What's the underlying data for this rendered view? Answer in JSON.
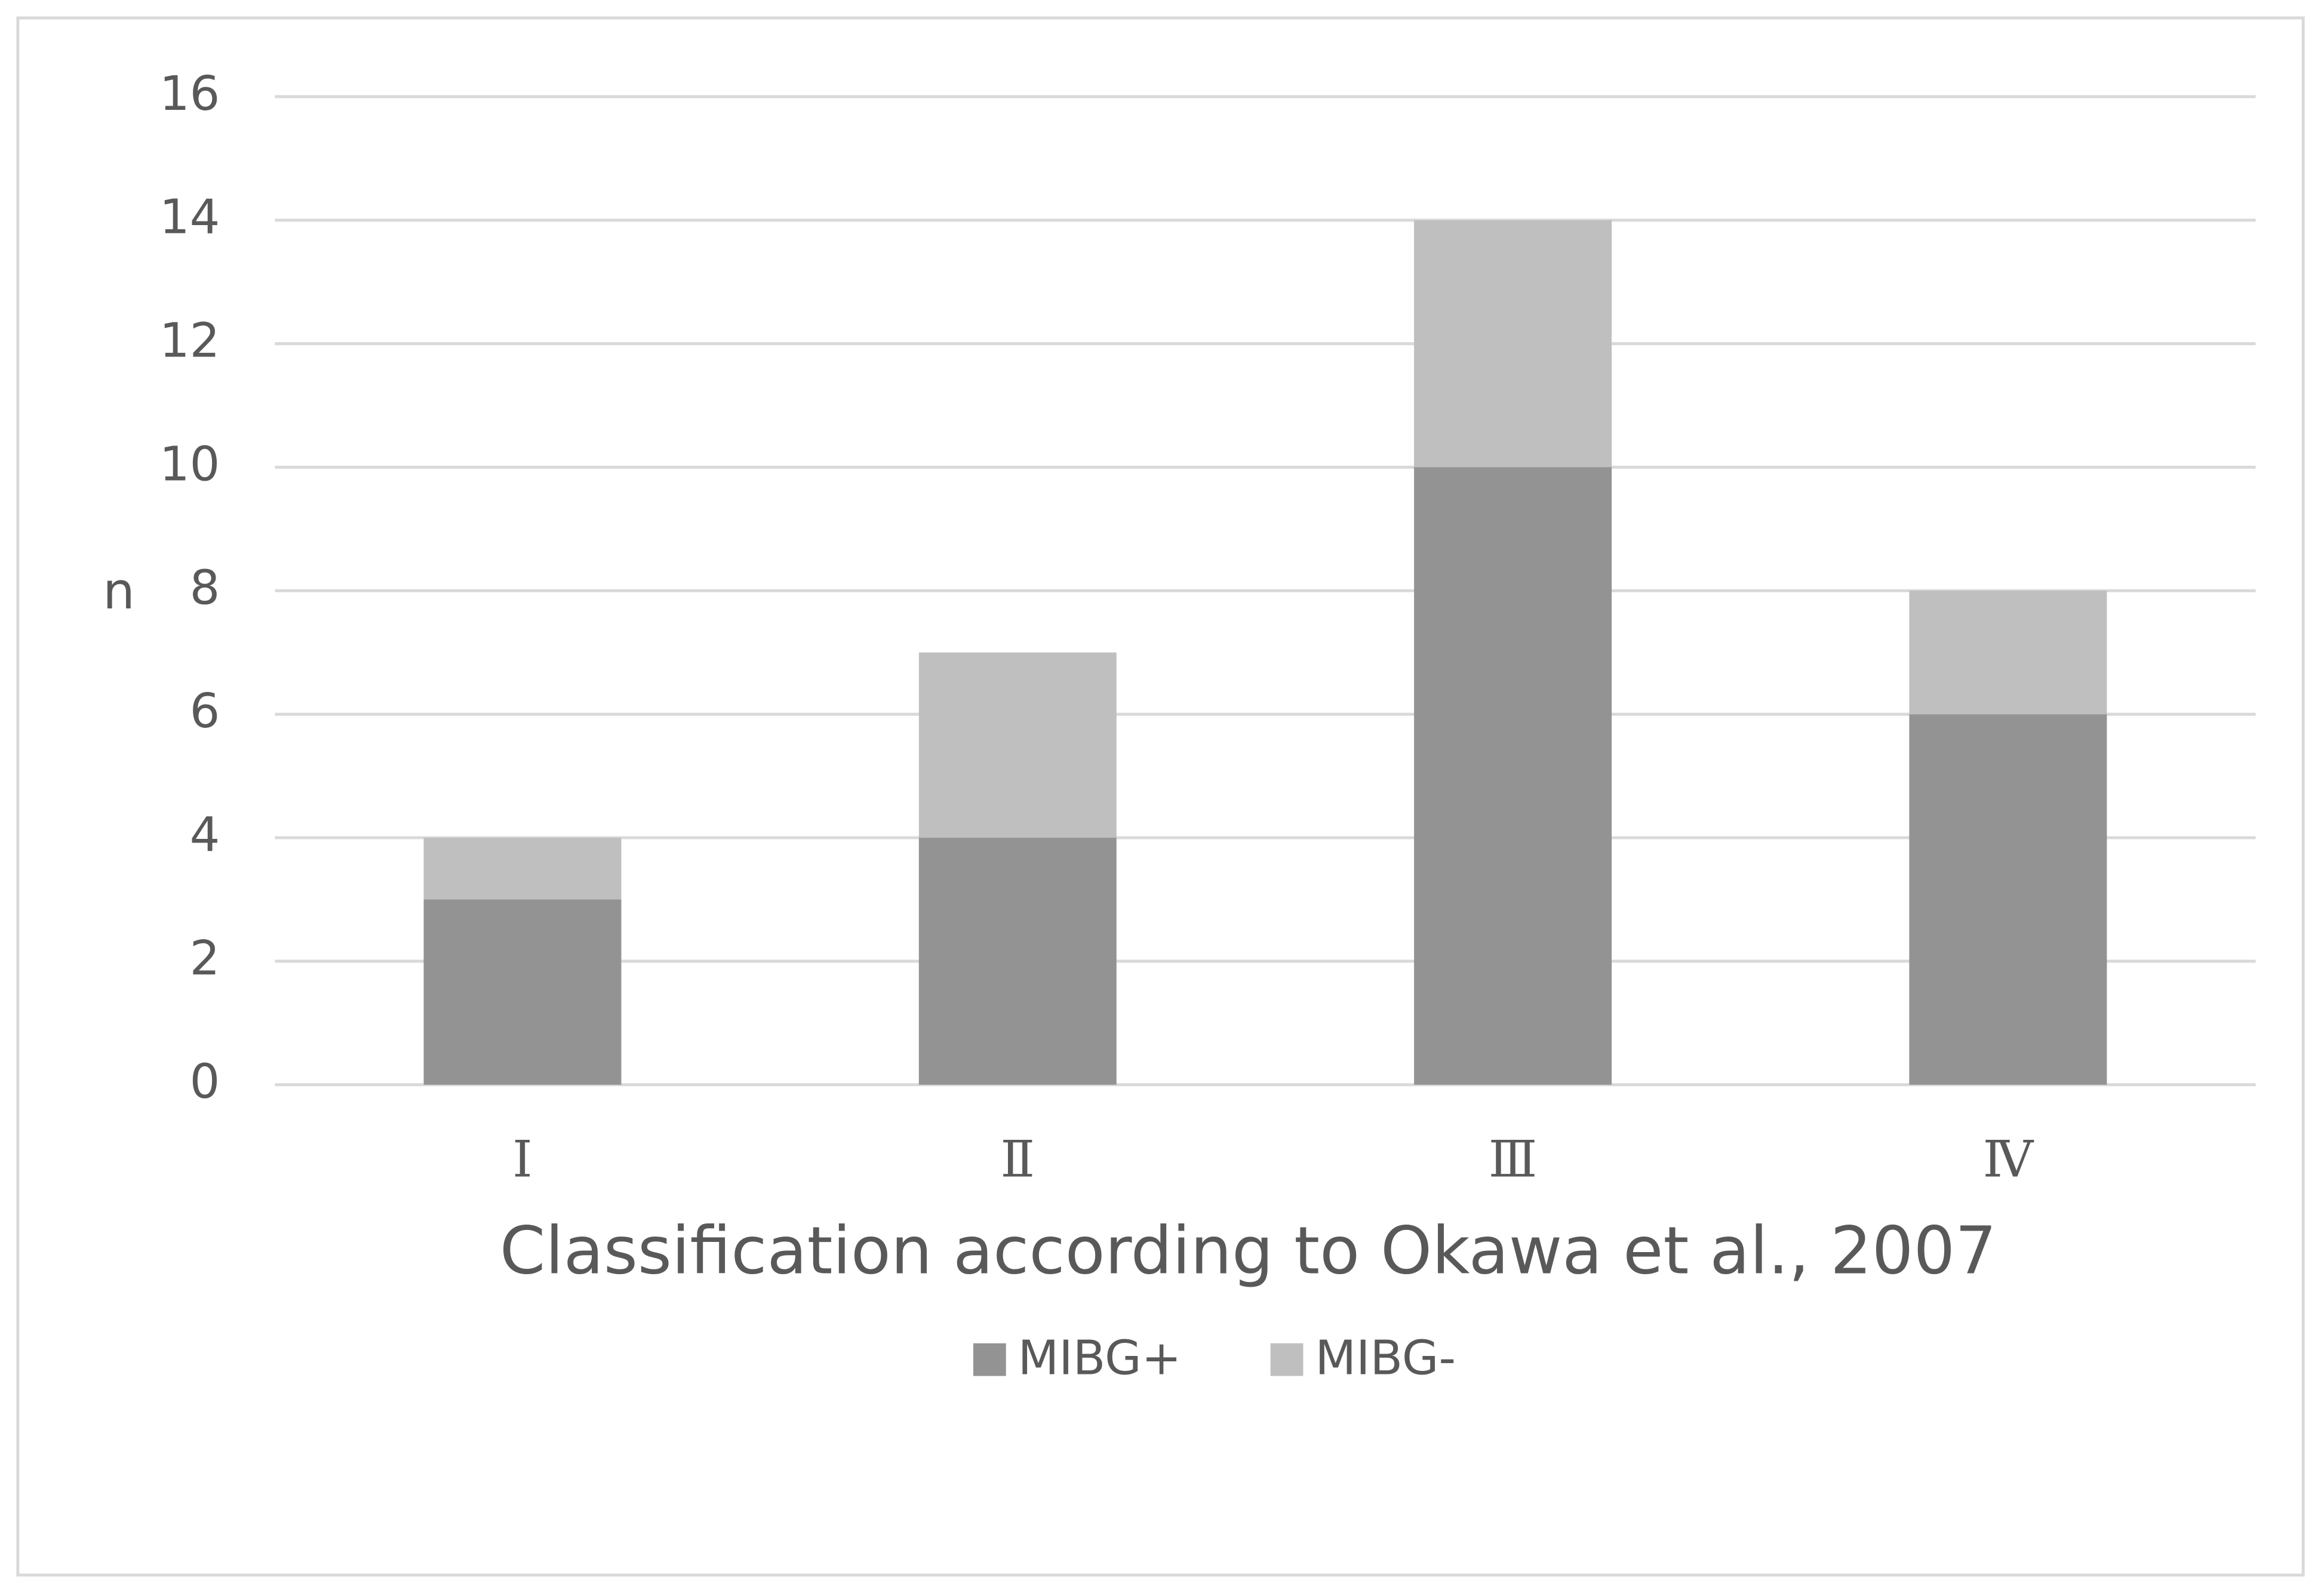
{
  "chart_data": {
    "type": "stacked_bar",
    "x_label": "Classification according to Okawa et al., 2007",
    "y_label": "n",
    "categories": [
      "Ⅰ",
      "Ⅱ",
      "Ⅲ",
      "Ⅳ"
    ],
    "series": [
      {
        "name": "MIBG+",
        "color": "#939393",
        "values": [
          3,
          4,
          10,
          6
        ]
      },
      {
        "name": "MIBG-",
        "color": "#bfbfbf",
        "values": [
          1,
          3,
          4,
          2
        ]
      }
    ],
    "ylim": [
      0,
      16
    ],
    "yticks": [
      0,
      2,
      4,
      6,
      8,
      10,
      12,
      14,
      16
    ],
    "grid": true,
    "legend": "bottom"
  }
}
